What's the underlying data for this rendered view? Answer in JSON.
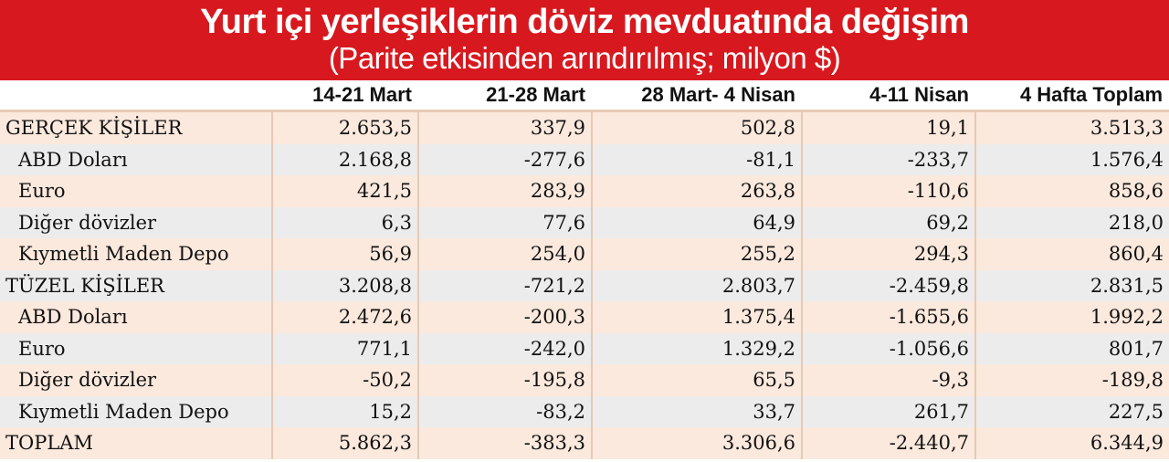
{
  "title": "Yurt içi yerleşiklerin döviz mevduatında değişim",
  "subtitle": "(Parite etkisinden arındırılmış; milyon $)",
  "chart_data": {
    "type": "table",
    "columns": [
      "14-21 Mart",
      "21-28 Mart",
      "28 Mart- 4 Nisan",
      "4-11 Nisan",
      "4 Hafta Toplam"
    ],
    "rows": [
      {
        "label": "GERÇEK KİŞİLER",
        "indent": false,
        "values": [
          "2.653,5",
          "337,9",
          "502,8",
          "19,1",
          "3.513,3"
        ]
      },
      {
        "label": "ABD Doları",
        "indent": true,
        "values": [
          "2.168,8",
          "-277,6",
          "-81,1",
          "-233,7",
          "1.576,4"
        ]
      },
      {
        "label": "Euro",
        "indent": true,
        "values": [
          "421,5",
          "283,9",
          "263,8",
          "-110,6",
          "858,6"
        ]
      },
      {
        "label": "Diğer dövizler",
        "indent": true,
        "values": [
          "6,3",
          "77,6",
          "64,9",
          "69,2",
          "218,0"
        ]
      },
      {
        "label": "Kıymetli Maden Depo",
        "indent": true,
        "values": [
          "56,9",
          "254,0",
          "255,2",
          "294,3",
          "860,4"
        ]
      },
      {
        "label": "TÜZEL KİŞİLER",
        "indent": false,
        "values": [
          "3.208,8",
          "-721,2",
          "2.803,7",
          "-2.459,8",
          "2.831,5"
        ]
      },
      {
        "label": "ABD Doları",
        "indent": true,
        "values": [
          "2.472,6",
          "-200,3",
          "1.375,4",
          "-1.655,6",
          "1.992,2"
        ]
      },
      {
        "label": "Euro",
        "indent": true,
        "values": [
          "771,1",
          "-242,0",
          "1.329,2",
          "-1.056,6",
          "801,7"
        ]
      },
      {
        "label": "Diğer dövizler",
        "indent": true,
        "values": [
          "-50,2",
          "-195,8",
          "65,5",
          "-9,3",
          "-189,8"
        ]
      },
      {
        "label": "Kıymetli Maden Depo",
        "indent": true,
        "values": [
          "15,2",
          "-83,2",
          "33,7",
          "261,7",
          "227,5"
        ]
      },
      {
        "label": "TOPLAM",
        "indent": false,
        "values": [
          "5.862,3",
          "-383,3",
          "3.306,6",
          "-2.440,7",
          "6.344,9"
        ]
      }
    ]
  },
  "colors": {
    "header_bg": "#d7191f",
    "row_odd": "#fbe9dd",
    "row_even": "#ececec",
    "separator": "#e7c9b4"
  }
}
